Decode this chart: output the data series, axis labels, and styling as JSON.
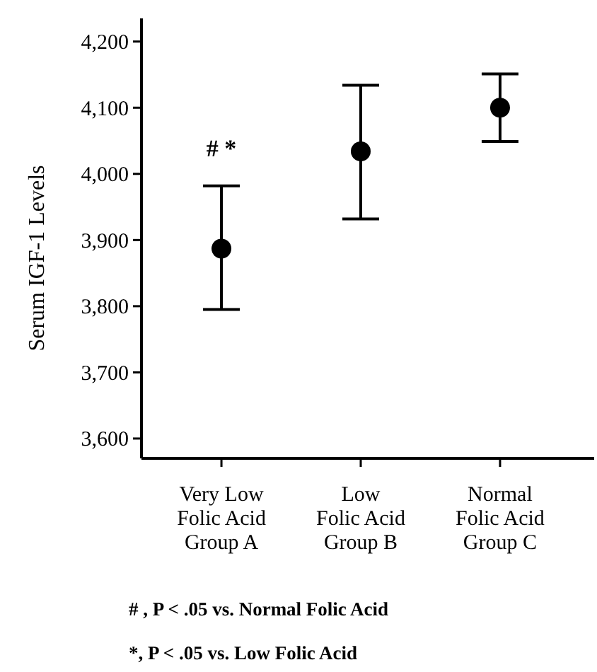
{
  "chart_data": {
    "type": "scatter",
    "ylabel": "Serum IGF-1 Levels",
    "categories": [
      "Very Low\nFolic Acid\nGroup A",
      "Low\nFolic Acid\nGroup B",
      "Normal\nFolic Acid\nGroup C"
    ],
    "values": [
      3887,
      4034,
      4100
    ],
    "errors": [
      [
        3795,
        3982
      ],
      [
        3932,
        4134
      ],
      [
        4049,
        4151
      ]
    ],
    "color": "#000000",
    "marker": "circle",
    "grid": false,
    "ylim": [
      3570,
      4235
    ],
    "yticks": [
      {
        "value": 3600,
        "label": "3,600"
      },
      {
        "value": 3700,
        "label": "3,700"
      },
      {
        "value": 3800,
        "label": "3,800"
      },
      {
        "value": 3900,
        "label": "3,900"
      },
      {
        "value": 4000,
        "label": "4,000"
      },
      {
        "value": 4100,
        "label": "4,100"
      },
      {
        "value": 4200,
        "label": "4,200"
      }
    ],
    "annotations": [
      {
        "text": "# *",
        "x": "Very Low\nFolic Acid\nGroup A",
        "y": 3982
      },
      "# , P < .05 vs. Normal Folic Acid",
      "*, P < .05 vs. Low Folic Acid"
    ]
  }
}
